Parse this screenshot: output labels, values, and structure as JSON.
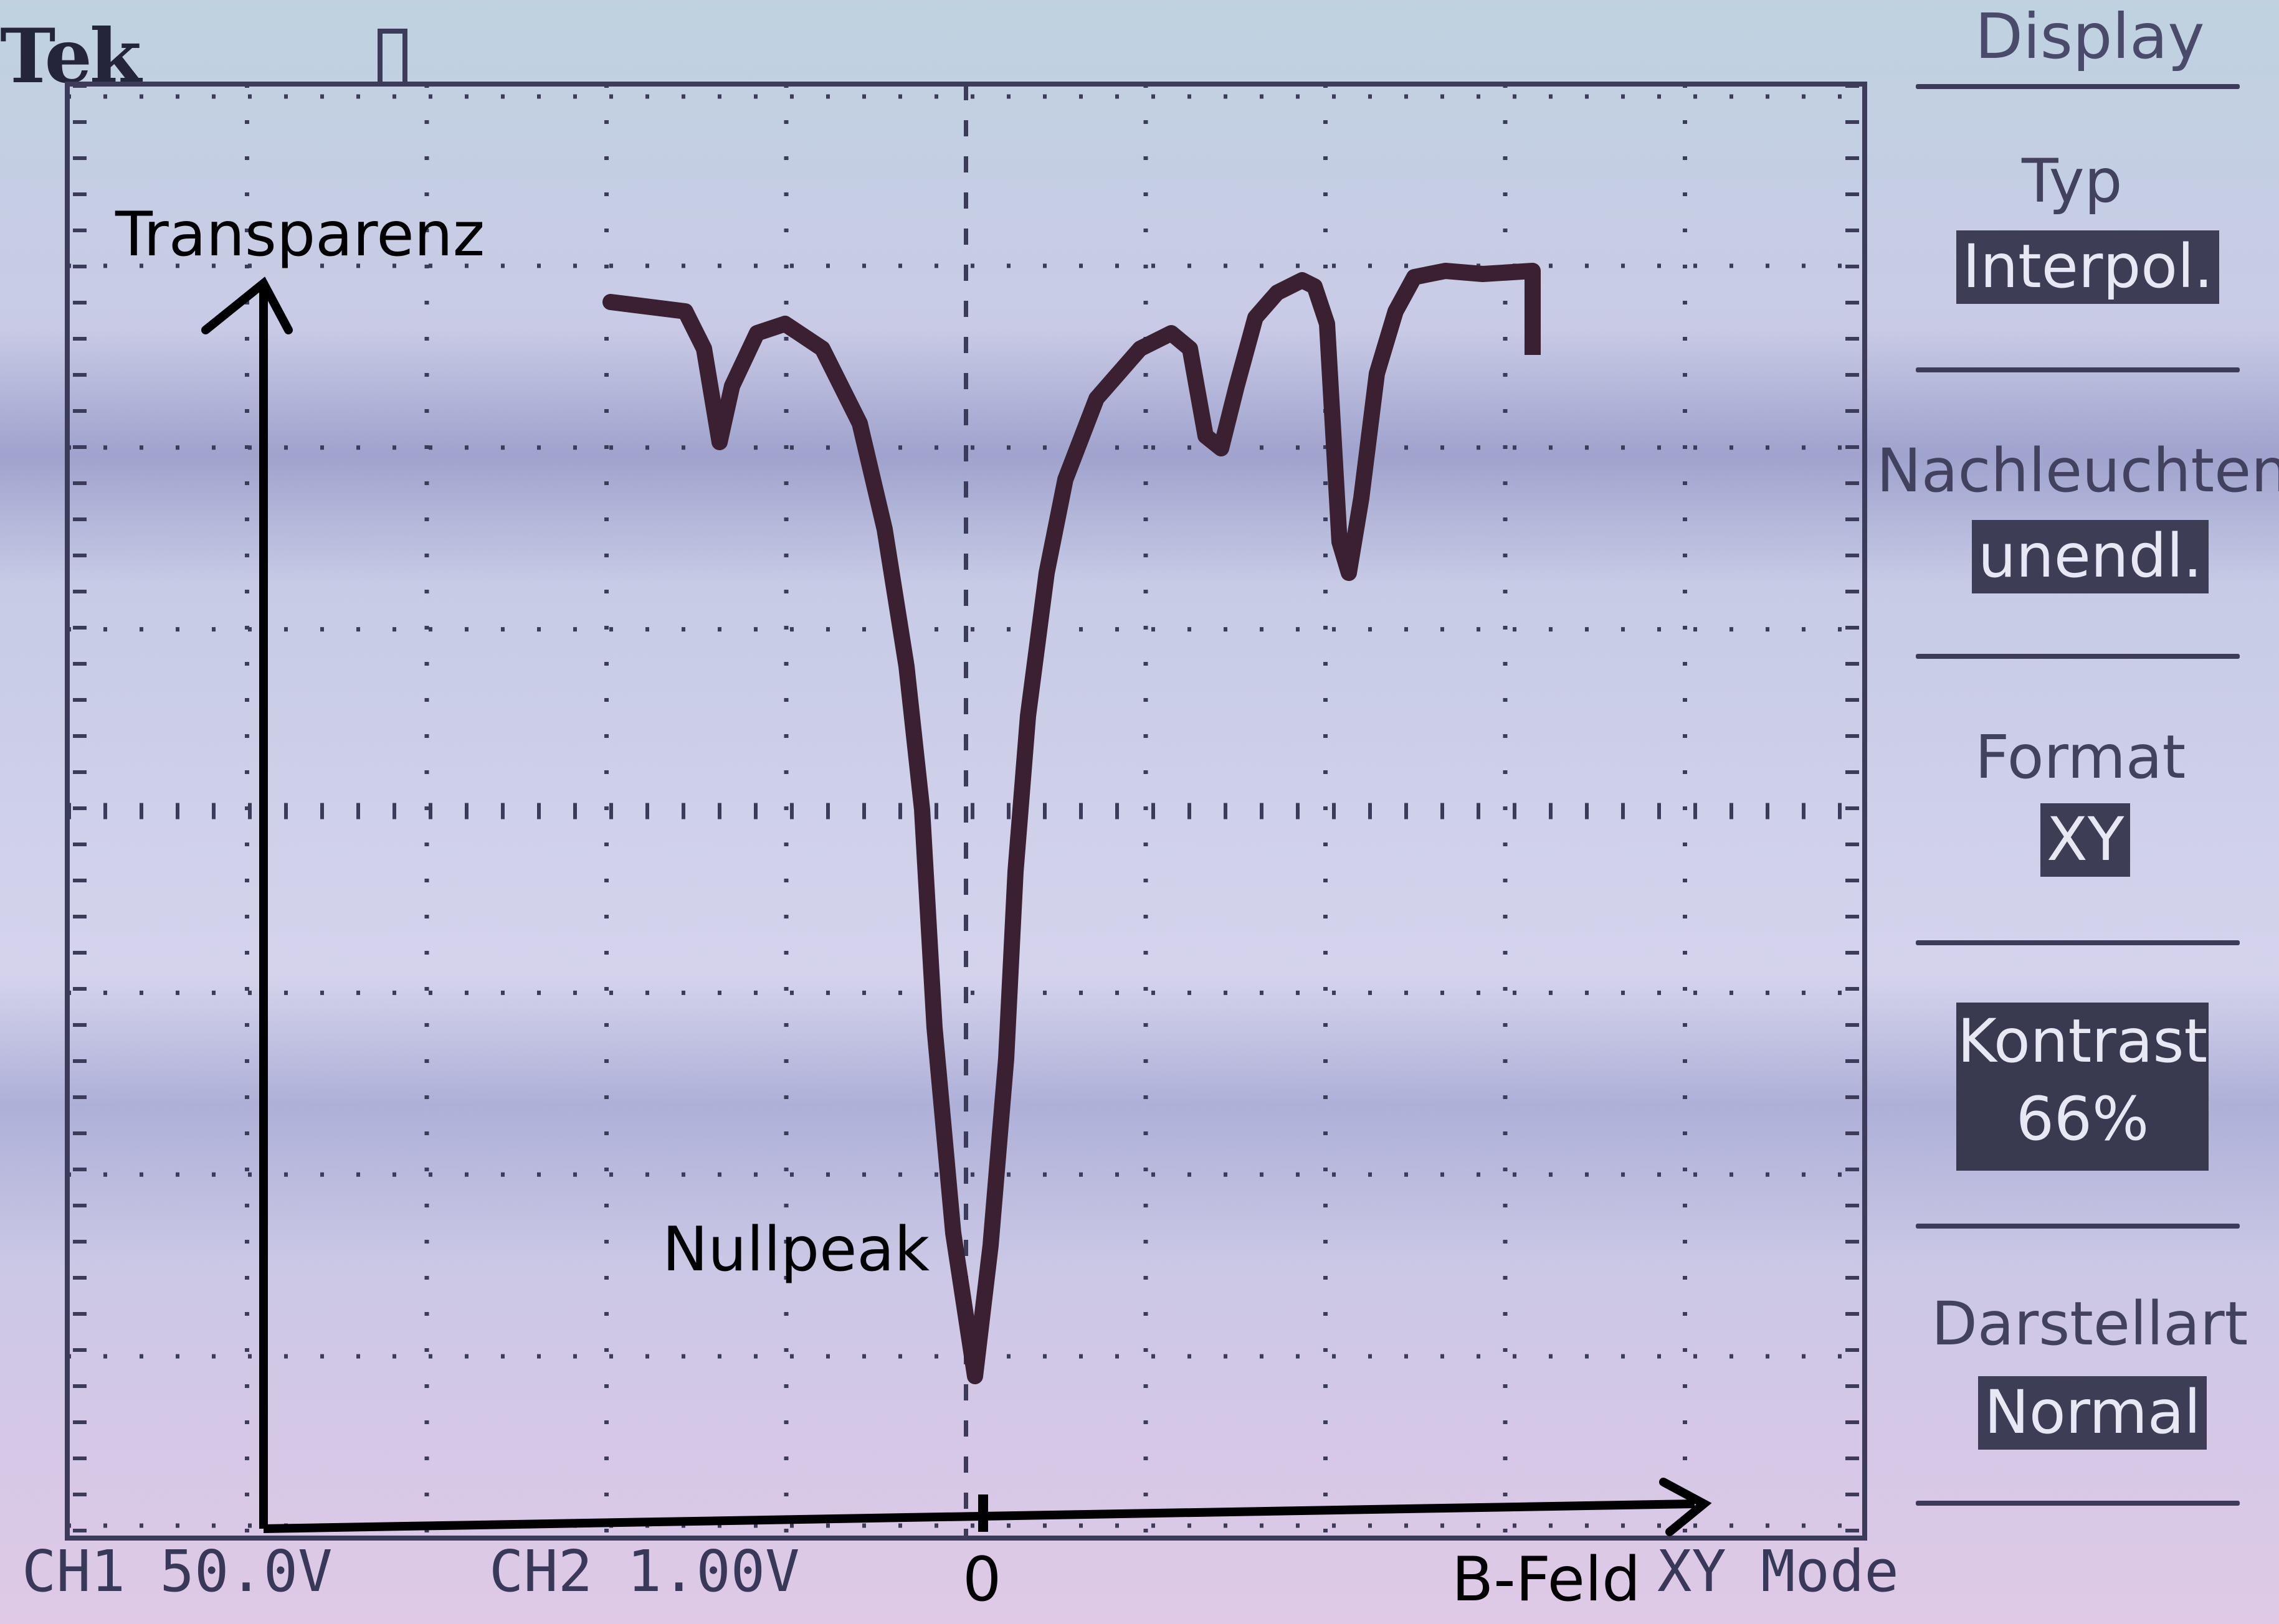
{
  "header": {
    "brand": "Tek"
  },
  "status": {
    "ch1": "CH1  50.0V",
    "ch2": "CH2  1.00V",
    "mode": "XY Mode"
  },
  "annotations": {
    "y_axis": "Transparenz",
    "x_axis": "B-Feld",
    "peak": "Nullpeak",
    "origin": "0"
  },
  "menu": {
    "title": "Display",
    "items": [
      {
        "label": "Typ",
        "value": "Interpol."
      },
      {
        "label": "Nachleuchten",
        "value": "unendl."
      },
      {
        "label": "Format",
        "value": "XY"
      },
      {
        "label": "Kontrast",
        "value": "66%"
      },
      {
        "label": "Darstellart",
        "value": "Normal"
      }
    ]
  },
  "colors": {
    "trace": "#3a2030",
    "grid": "#3c3c5a",
    "annotation": "#000000"
  }
}
